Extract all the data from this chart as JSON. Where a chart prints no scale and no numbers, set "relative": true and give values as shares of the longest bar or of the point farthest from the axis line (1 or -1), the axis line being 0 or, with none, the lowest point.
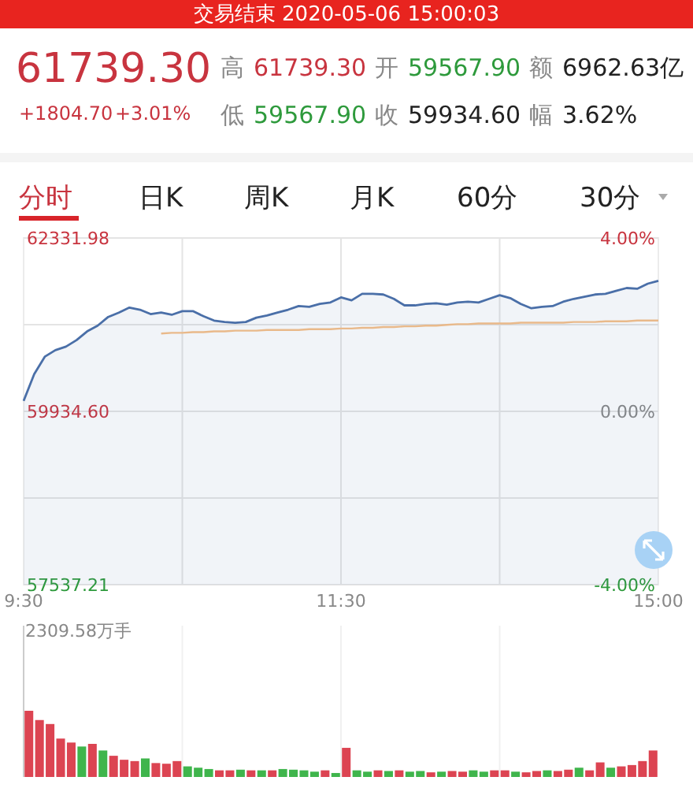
{
  "chart_data": [
    {
      "type": "line",
      "title": "交易结束 2020-05-06 15:00:03",
      "annotations": [
        "61739.30",
        "+1804.70",
        "+3.01%",
        "高",
        "61739.30",
        "开",
        "59567.90",
        "额",
        "6962.63亿",
        "低",
        "59567.90",
        "收",
        "59934.60",
        "幅",
        "3.62%",
        "分时",
        "日K",
        "周K",
        "月K",
        "60分",
        "30分"
      ],
      "series": [
        {
          "type": "area",
          "color": "#4a6fa8",
          "values": [
            60080,
            60450,
            60690,
            60780,
            60830,
            60920,
            61040,
            61120,
            61240,
            61300,
            61370,
            61340,
            61280,
            61300,
            61270,
            61320,
            61320,
            61250,
            61190,
            61170,
            61160,
            61170,
            61230,
            61260,
            61300,
            61340,
            61390,
            61380,
            61420,
            61440,
            61510,
            61470,
            61560,
            61560,
            61550,
            61490,
            61400,
            61400,
            61420,
            61430,
            61410,
            61440,
            61450,
            61440,
            61490,
            61540,
            61500,
            61420,
            61360,
            61380,
            61390,
            61450,
            61490,
            61520,
            61550,
            61560,
            61600,
            61640,
            61630,
            61700,
            61740
          ]
        },
        {
          "type": "line",
          "color": "#e9b98a",
          "values": [
            null,
            null,
            null,
            null,
            null,
            null,
            null,
            null,
            null,
            null,
            null,
            null,
            null,
            61010,
            61020,
            61020,
            61030,
            61030,
            61040,
            61040,
            61050,
            61050,
            61050,
            61060,
            61060,
            61060,
            61060,
            61070,
            61070,
            61070,
            61080,
            61080,
            61090,
            61090,
            61100,
            61100,
            61110,
            61110,
            61120,
            61120,
            61130,
            61140,
            61140,
            61150,
            61150,
            61150,
            61150,
            61160,
            61160,
            61160,
            61160,
            61160,
            61170,
            61170,
            61170,
            61180,
            61180,
            61180,
            61190,
            61190,
            61190
          ]
        }
      ],
      "categories": [
        "9:30",
        null,
        null,
        null,
        null,
        null,
        null,
        null,
        null,
        null,
        null,
        null,
        null,
        null,
        null,
        null,
        null,
        null,
        null,
        null,
        null,
        null,
        null,
        null,
        null,
        null,
        null,
        null,
        null,
        null,
        "11:30",
        null,
        null,
        null,
        null,
        null,
        null,
        null,
        null,
        null,
        null,
        null,
        null,
        null,
        null,
        null,
        null,
        null,
        null,
        null,
        null,
        null,
        null,
        null,
        null,
        null,
        null,
        null,
        null,
        null,
        "15:00"
      ],
      "ylim": [
        57537.21,
        62331.98
      ],
      "yticks": [
        57537.21,
        {
          "value": 58736.4,
          "label": null
        },
        {
          "value": 59934.6,
          "label": "59934.60"
        },
        {
          "value": 61133.29,
          "label": null
        },
        62331.98
      ],
      "y2lim": [
        -4,
        4
      ],
      "y2ticks": [
        {
          "value": -4,
          "label": "-4.00%"
        },
        {
          "value": 0,
          "label": "0.00%"
        },
        {
          "value": 4,
          "label": "4.00%"
        }
      ],
      "grid": true
    },
    {
      "type": "bar",
      "relative": true,
      "annotations": [
        "2309.58万手"
      ],
      "categories": [
        null,
        null,
        null,
        null,
        null,
        null,
        null,
        null,
        null,
        null,
        null,
        null,
        null,
        null,
        null,
        null,
        null,
        null,
        null,
        null,
        null,
        null,
        null,
        null,
        null,
        null,
        null,
        null,
        null,
        null,
        null,
        null,
        null,
        null,
        null,
        null,
        null,
        null,
        null,
        null,
        null,
        null,
        null,
        null,
        null,
        null,
        null,
        null,
        null,
        null,
        null,
        null,
        null,
        null,
        null,
        null,
        null,
        null,
        null,
        null
      ],
      "values": [
        1,
        0.86,
        0.8,
        0.58,
        0.52,
        0.46,
        0.5,
        0.4,
        0.32,
        0.26,
        0.24,
        0.28,
        0.21,
        0.2,
        0.24,
        0.16,
        0.14,
        0.12,
        0.1,
        0.1,
        0.11,
        0.1,
        0.1,
        0.1,
        0.12,
        0.11,
        0.1,
        0.08,
        0.1,
        0.06,
        0.44,
        0.1,
        0.08,
        0.1,
        0.09,
        0.1,
        0.08,
        0.09,
        0.07,
        0.08,
        0.09,
        0.08,
        0.1,
        0.08,
        0.1,
        0.1,
        0.08,
        0.07,
        0.09,
        0.1,
        0.09,
        0.11,
        0.14,
        0.1,
        0.22,
        0.14,
        0.16,
        0.18,
        0.24,
        0.4
      ],
      "colors": [
        "#dc4452",
        "#dc4452",
        "#dc4452",
        "#dc4452",
        "#dc4452",
        "#3fb54c",
        "#dc4452",
        "#3fb54c",
        "#dc4452",
        "#dc4452",
        "#dc4452",
        "#3fb54c",
        "#dc4452",
        "#dc4452",
        "#dc4452",
        "#3fb54c",
        "#3fb54c",
        "#3fb54c",
        "#dc4452",
        "#dc4452",
        "#3fb54c",
        "#dc4452",
        "#3fb54c",
        "#dc4452",
        "#3fb54c",
        "#3fb54c",
        "#3fb54c",
        "#3fb54c",
        "#dc4452",
        "#3fb54c",
        "#dc4452",
        "#3fb54c",
        "#3fb54c",
        "#dc4452",
        "#3fb54c",
        "#dc4452",
        "#3fb54c",
        "#3fb54c",
        "#dc4452",
        "#3fb54c",
        "#dc4452",
        "#dc4452",
        "#3fb54c",
        "#3fb54c",
        "#dc4452",
        "#dc4452",
        "#3fb54c",
        "#dc4452",
        "#dc4452",
        "#3fb54c",
        "#dc4452",
        "#dc4452",
        "#3fb54c",
        "#dc4452",
        "#dc4452",
        "#3fb54c",
        "#dc4452",
        "#dc4452",
        "#dc4452",
        "#dc4452"
      ]
    }
  ]
}
